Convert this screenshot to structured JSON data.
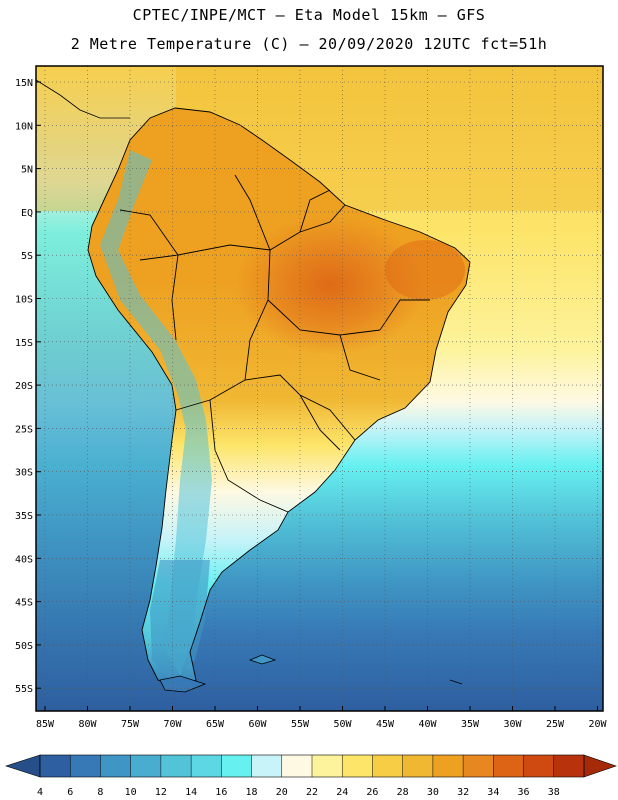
{
  "header": {
    "line1": "CPTEC/INPE/MCT –  Eta Model 15km – GFS",
    "line2": "2 Metre Temperature (C) – 20/09/2020 12UTC fct=51h"
  },
  "lat_labels": [
    "15N",
    "10N",
    "5N",
    "EQ",
    "5S",
    "10S",
    "15S",
    "20S",
    "25S",
    "30S",
    "35S",
    "40S",
    "45S",
    "50S",
    "55S"
  ],
  "lon_labels": [
    "85W",
    "80W",
    "75W",
    "70W",
    "65W",
    "60W",
    "55W",
    "50W",
    "45W",
    "40W",
    "35W",
    "30W",
    "25W",
    "20W"
  ],
  "colorbar": {
    "labels": [
      "4",
      "6",
      "8",
      "10",
      "12",
      "14",
      "16",
      "18",
      "20",
      "22",
      "24",
      "26",
      "28",
      "30",
      "32",
      "34",
      "36",
      "38"
    ],
    "colors": [
      "#2e5fa0",
      "#3779b6",
      "#3f96c4",
      "#49adcf",
      "#53c3d8",
      "#5dd7e3",
      "#66f0f0",
      "#c8f3f8",
      "#fef9e3",
      "#fdf39c",
      "#fde56a",
      "#f6cd45",
      "#f0b733",
      "#eea121",
      "#e7871f",
      "#dd6415",
      "#cf4a10",
      "#b8330b"
    ],
    "under_color": "#264f8a",
    "over_color": "#a52a0a"
  }
}
